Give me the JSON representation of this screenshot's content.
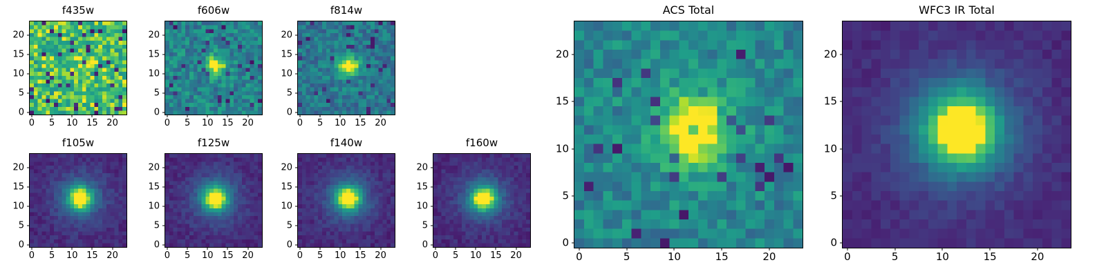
{
  "figure": {
    "background": "#ffffff",
    "text_color": "#000000",
    "description": "Grid of astronomical image cutout heatmaps in HST filters plus ACS and WFC3 IR total stacks, viridis colormap, point source centered near pixel (12,12)."
  },
  "colormap_stops": [
    [
      0.0,
      "#440154"
    ],
    [
      0.125,
      "#482878"
    ],
    [
      0.25,
      "#3e4a89"
    ],
    [
      0.375,
      "#31688e"
    ],
    [
      0.5,
      "#26828e"
    ],
    [
      0.625,
      "#1f9e89"
    ],
    [
      0.75,
      "#35b779"
    ],
    [
      0.875,
      "#6dcd59"
    ],
    [
      0.9375,
      "#b4de2c"
    ],
    [
      1.0,
      "#fde725"
    ]
  ],
  "chart_data": [
    {
      "id": "f435w",
      "type": "heatmap",
      "title": "f435w",
      "size": "small",
      "n": 24,
      "xlim": [
        -0.5,
        23.5
      ],
      "ylim": [
        -0.5,
        23.5
      ],
      "x_ticks": [
        0,
        5,
        10,
        15,
        20
      ],
      "y_ticks": [
        0,
        5,
        10,
        15,
        20
      ],
      "colormap": "viridis",
      "seed": 101,
      "noise": {
        "base": 0.55,
        "amp": 0.45,
        "dark_fraction": 0.06
      },
      "source": {
        "x": 12,
        "y": 12,
        "components": [
          {
            "amplitude": 0.15,
            "sigma": 1.8
          }
        ]
      }
    },
    {
      "id": "f606w",
      "type": "heatmap",
      "title": "f606w",
      "size": "small",
      "n": 24,
      "xlim": [
        -0.5,
        23.5
      ],
      "ylim": [
        -0.5,
        23.5
      ],
      "x_ticks": [
        0,
        5,
        10,
        15,
        20
      ],
      "y_ticks": [
        0,
        5,
        10,
        15,
        20
      ],
      "colormap": "viridis",
      "seed": 202,
      "noise": {
        "base": 0.33,
        "amp": 0.34,
        "dark_fraction": 0.05
      },
      "source": {
        "x": 12,
        "y": 12,
        "components": [
          {
            "amplitude": 0.55,
            "sigma": 1.5
          },
          {
            "amplitude": 0.1,
            "sigma": 3.0
          }
        ]
      }
    },
    {
      "id": "f814w",
      "type": "heatmap",
      "title": "f814w",
      "size": "small",
      "n": 24,
      "xlim": [
        -0.5,
        23.5
      ],
      "ylim": [
        -0.5,
        23.5
      ],
      "x_ticks": [
        0,
        5,
        10,
        15,
        20
      ],
      "y_ticks": [
        0,
        5,
        10,
        15,
        20
      ],
      "colormap": "viridis",
      "seed": 303,
      "noise": {
        "base": 0.3,
        "amp": 0.3,
        "dark_fraction": 0.05
      },
      "source": {
        "x": 12,
        "y": 12,
        "components": [
          {
            "amplitude": 0.75,
            "sigma": 1.4
          },
          {
            "amplitude": 0.12,
            "sigma": 3.0
          }
        ]
      }
    },
    {
      "id": "f105w",
      "type": "heatmap",
      "title": "f105w",
      "size": "small",
      "n": 24,
      "xlim": [
        -0.5,
        23.5
      ],
      "ylim": [
        -0.5,
        23.5
      ],
      "x_ticks": [
        0,
        5,
        10,
        15,
        20
      ],
      "y_ticks": [
        0,
        5,
        10,
        15,
        20
      ],
      "colormap": "viridis",
      "seed": 404,
      "noise": {
        "base": 0.07,
        "amp": 0.13,
        "dark_fraction": 0.0
      },
      "source": {
        "x": 12,
        "y": 12,
        "components": [
          {
            "amplitude": 0.85,
            "sigma": 2.0
          },
          {
            "amplitude": 0.3,
            "sigma": 4.5
          }
        ]
      }
    },
    {
      "id": "f125w",
      "type": "heatmap",
      "title": "f125w",
      "size": "small",
      "n": 24,
      "xlim": [
        -0.5,
        23.5
      ],
      "ylim": [
        -0.5,
        23.5
      ],
      "x_ticks": [
        0,
        5,
        10,
        15,
        20
      ],
      "y_ticks": [
        0,
        5,
        10,
        15,
        20
      ],
      "colormap": "viridis",
      "seed": 505,
      "noise": {
        "base": 0.07,
        "amp": 0.13,
        "dark_fraction": 0.0
      },
      "source": {
        "x": 12,
        "y": 12,
        "components": [
          {
            "amplitude": 0.88,
            "sigma": 2.0
          },
          {
            "amplitude": 0.3,
            "sigma": 4.5
          }
        ]
      }
    },
    {
      "id": "f140w",
      "type": "heatmap",
      "title": "f140w",
      "size": "small",
      "n": 24,
      "xlim": [
        -0.5,
        23.5
      ],
      "ylim": [
        -0.5,
        23.5
      ],
      "x_ticks": [
        0,
        5,
        10,
        15,
        20
      ],
      "y_ticks": [
        0,
        5,
        10,
        15,
        20
      ],
      "colormap": "viridis",
      "seed": 606,
      "noise": {
        "base": 0.07,
        "amp": 0.13,
        "dark_fraction": 0.0
      },
      "source": {
        "x": 12,
        "y": 12,
        "components": [
          {
            "amplitude": 0.88,
            "sigma": 2.0
          },
          {
            "amplitude": 0.3,
            "sigma": 4.5
          }
        ]
      }
    },
    {
      "id": "f160w",
      "type": "heatmap",
      "title": "f160w",
      "size": "small",
      "n": 24,
      "xlim": [
        -0.5,
        23.5
      ],
      "ylim": [
        -0.5,
        23.5
      ],
      "x_ticks": [
        0,
        5,
        10,
        15,
        20
      ],
      "y_ticks": [
        0,
        5,
        10,
        15,
        20
      ],
      "colormap": "viridis",
      "seed": 707,
      "noise": {
        "base": 0.07,
        "amp": 0.13,
        "dark_fraction": 0.0
      },
      "source": {
        "x": 12,
        "y": 12,
        "components": [
          {
            "amplitude": 0.9,
            "sigma": 2.0
          },
          {
            "amplitude": 0.3,
            "sigma": 4.5
          }
        ]
      }
    },
    {
      "id": "acs",
      "type": "heatmap",
      "title": "ACS Total",
      "size": "large",
      "n": 24,
      "xlim": [
        -0.5,
        23.5
      ],
      "ylim": [
        -0.5,
        23.5
      ],
      "x_ticks": [
        0,
        5,
        10,
        15,
        20
      ],
      "y_ticks": [
        0,
        5,
        10,
        15,
        20
      ],
      "colormap": "viridis",
      "seed": 808,
      "noise": {
        "base": 0.36,
        "amp": 0.3,
        "dark_fraction": 0.04
      },
      "source": {
        "x": 12,
        "y": 12,
        "components": [
          {
            "amplitude": 0.6,
            "sigma": 2.0
          },
          {
            "amplitude": 0.18,
            "sigma": 4.0
          }
        ]
      }
    },
    {
      "id": "wfc3",
      "type": "heatmap",
      "title": "WFC3 IR Total",
      "size": "large",
      "n": 24,
      "xlim": [
        -0.5,
        23.5
      ],
      "ylim": [
        -0.5,
        23.5
      ],
      "x_ticks": [
        0,
        5,
        10,
        15,
        20
      ],
      "y_ticks": [
        0,
        5,
        10,
        15,
        20
      ],
      "colormap": "viridis",
      "seed": 909,
      "noise": {
        "base": 0.08,
        "amp": 0.1,
        "dark_fraction": 0.0
      },
      "source": {
        "x": 12,
        "y": 12,
        "components": [
          {
            "amplitude": 0.88,
            "sigma": 2.6
          },
          {
            "amplitude": 0.3,
            "sigma": 5.0
          }
        ]
      }
    }
  ]
}
